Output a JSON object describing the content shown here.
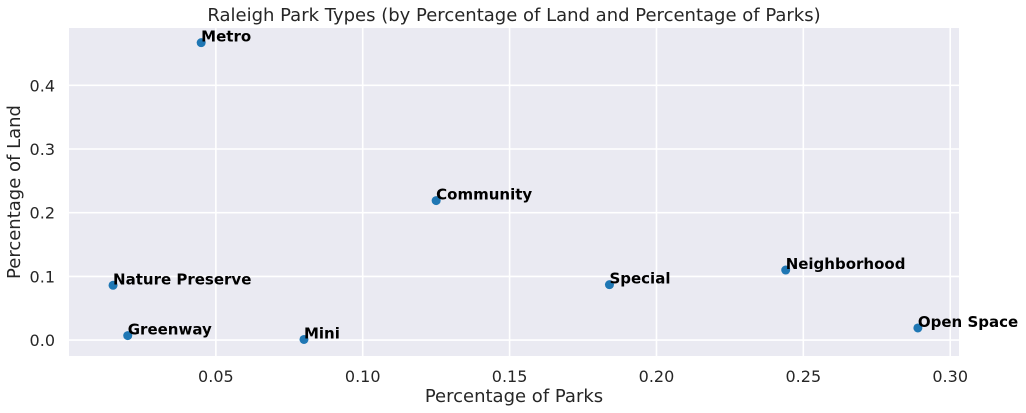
{
  "chart_data": {
    "type": "scatter",
    "title": "Raleigh Park Types (by Percentage of Land and Percentage of Parks)",
    "xlabel": "Percentage of Parks",
    "ylabel": "Percentage of Land",
    "xlim": [
      0.0,
      0.303
    ],
    "ylim": [
      -0.025,
      0.49
    ],
    "xticks": [
      0.05,
      0.1,
      0.15,
      0.2,
      0.25,
      0.3
    ],
    "xtick_labels": [
      "0.05",
      "0.10",
      "0.15",
      "0.20",
      "0.25",
      "0.30"
    ],
    "yticks": [
      0.0,
      0.1,
      0.2,
      0.3,
      0.4
    ],
    "ytick_labels": [
      "0.0",
      "0.1",
      "0.2",
      "0.3",
      "0.4"
    ],
    "grid": true,
    "background_color": "#EAEAF2",
    "point_color": "#1F77B4",
    "points": [
      {
        "label": "Metro",
        "x": 0.045,
        "y": 0.467
      },
      {
        "label": "Community",
        "x": 0.125,
        "y": 0.219
      },
      {
        "label": "Nature Preserve",
        "x": 0.015,
        "y": 0.086
      },
      {
        "label": "Special",
        "x": 0.184,
        "y": 0.087
      },
      {
        "label": "Neighborhood",
        "x": 0.244,
        "y": 0.11
      },
      {
        "label": "Greenway",
        "x": 0.02,
        "y": 0.007
      },
      {
        "label": "Mini",
        "x": 0.08,
        "y": 0.001
      },
      {
        "label": "Open Space",
        "x": 0.289,
        "y": 0.019
      }
    ]
  }
}
